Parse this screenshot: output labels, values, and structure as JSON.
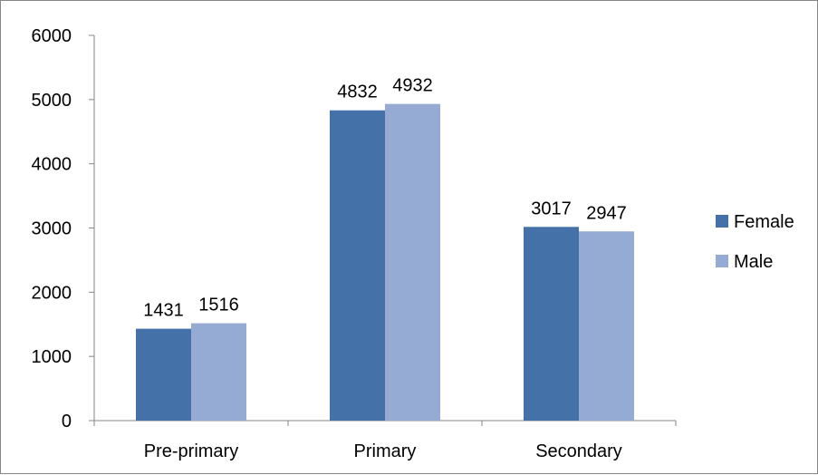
{
  "chart_data": {
    "type": "bar",
    "categories": [
      "Pre-primary",
      "Primary",
      "Secondary"
    ],
    "series": [
      {
        "name": "Female",
        "values": [
          1431,
          4832,
          3017
        ],
        "color": "#4472a8"
      },
      {
        "name": "Male",
        "values": [
          1516,
          4932,
          2947
        ],
        "color": "#95abd3"
      }
    ],
    "yticks": [
      "0",
      "1000",
      "2000",
      "3000",
      "4000",
      "5000",
      "6000"
    ],
    "ylim": [
      0,
      6000
    ],
    "grid": false,
    "legend_position": "right",
    "data_labels": true,
    "axis_color": "#868686"
  }
}
